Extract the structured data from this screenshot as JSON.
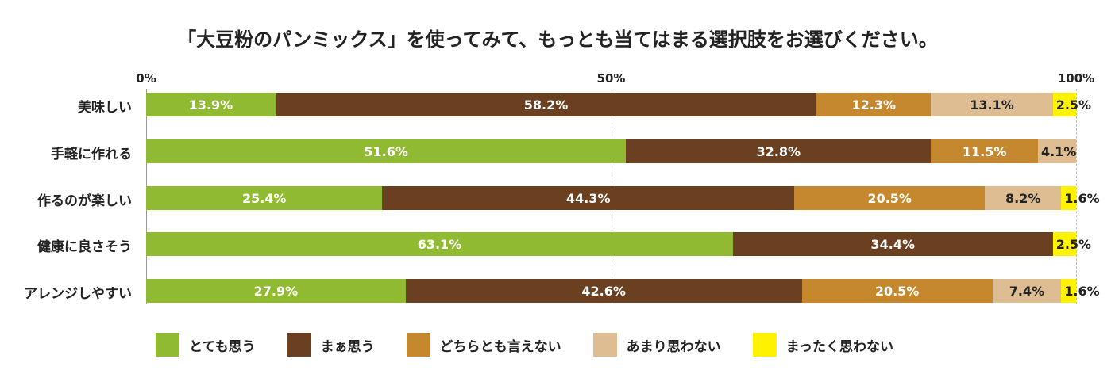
{
  "chart_data": {
    "type": "bar",
    "orientation": "horizontal",
    "stacked": true,
    "title": "「大豆粉のパンミックス」を使ってみて、もっとも当てはまる選択肢をお選びください。",
    "x_ticks": [
      "0%",
      "50%",
      "100%"
    ],
    "xlim": [
      0,
      100
    ],
    "grid": true,
    "legend_position": "bottom",
    "categories": [
      "美味しい",
      "手軽に作れる",
      "作るのが楽しい",
      "健康に良さそう",
      "アレンジしやすい"
    ],
    "series": [
      {
        "name": "とても思う",
        "color": "#8fba32",
        "values": [
          13.9,
          51.6,
          25.4,
          63.1,
          27.9
        ],
        "labels": [
          "13.9%",
          "51.6%",
          "25.4%",
          "63.1%",
          "27.9%"
        ]
      },
      {
        "name": "まぁ思う",
        "color": "#6b4020",
        "values": [
          58.2,
          32.8,
          44.3,
          34.4,
          42.6
        ],
        "labels": [
          "58.2%",
          "32.8%",
          "44.3%",
          "34.4%",
          "42.6%"
        ]
      },
      {
        "name": "どちらとも言えない",
        "color": "#c6882e",
        "values": [
          12.3,
          11.5,
          20.5,
          0,
          20.5
        ],
        "labels": [
          "12.3%",
          "11.5%",
          "20.5%",
          "",
          "20.5%"
        ]
      },
      {
        "name": "あまり思わない",
        "color": "#dfbd92",
        "values": [
          13.1,
          4.1,
          8.2,
          0,
          7.4
        ],
        "labels": [
          "13.1%",
          "4.1%",
          "8.2%",
          "",
          "7.4%"
        ]
      },
      {
        "name": "まったく思わない",
        "color": "#fff200",
        "values": [
          2.5,
          0,
          1.6,
          2.5,
          1.6
        ],
        "labels": [
          "2.5%",
          "",
          "1.6%",
          "2.5%",
          "1.6%"
        ]
      }
    ]
  }
}
